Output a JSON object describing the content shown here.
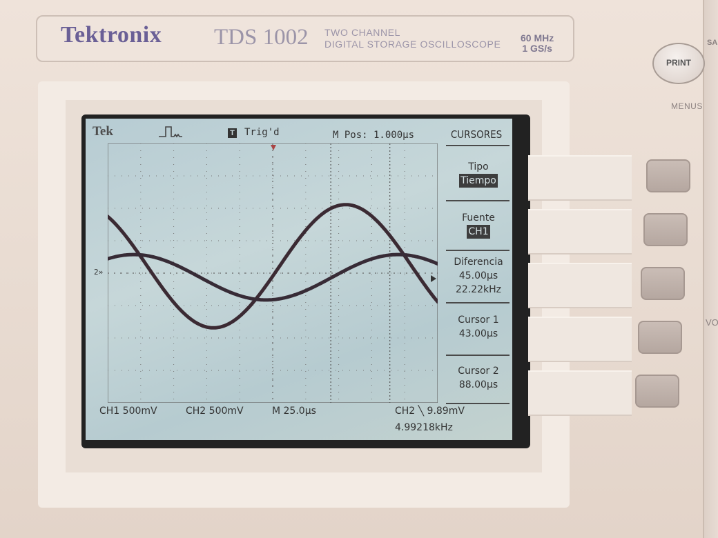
{
  "brand": "Tektronix",
  "model": "TDS 1002",
  "model_desc_line1": "TWO CHANNEL",
  "model_desc_line2": "DIGITAL STORAGE OSCILLOSCOPE",
  "spec_bandwidth": "60 MHz",
  "spec_samplerate": "1 GS/s",
  "panel": {
    "print_label": "PRINT",
    "menus_label": "MENUS",
    "save_label": "SA",
    "vol_label": "VO"
  },
  "screen": {
    "tek_label": "Tek",
    "trig_icon": "T",
    "trig_status": "Trig'd",
    "mpos": "M Pos: 1.000µs",
    "ch_marker": "2»"
  },
  "menu": {
    "title": "CURSORES",
    "tipo_label": "Tipo",
    "tipo_value": "Tiempo",
    "fuente_label": "Fuente",
    "fuente_value": "CH1",
    "diferencia_label": "Diferencia",
    "diferencia_value": "45.00µs",
    "diferencia_freq": "22.22kHz",
    "cursor1_label": "Cursor 1",
    "cursor1_value": "43.00µs",
    "cursor2_label": "Cursor 2",
    "cursor2_value": "88.00µs"
  },
  "bottom": {
    "ch1": "CH1  500mV",
    "ch2": "CH2  500mV",
    "timebase": "M 25.0µs",
    "trigger": "CH2 ╲  9.89mV",
    "freq": "4.99218kHz"
  },
  "waveforms": {
    "timebase_us_per_div": 25,
    "volts_per_div": 0.5,
    "cursor1_us": 43,
    "cursor2_us": 88,
    "ch1_amplitude_div": 1.9,
    "ch2_amplitude_div": 0.7,
    "frequency_khz": 4.99218
  }
}
